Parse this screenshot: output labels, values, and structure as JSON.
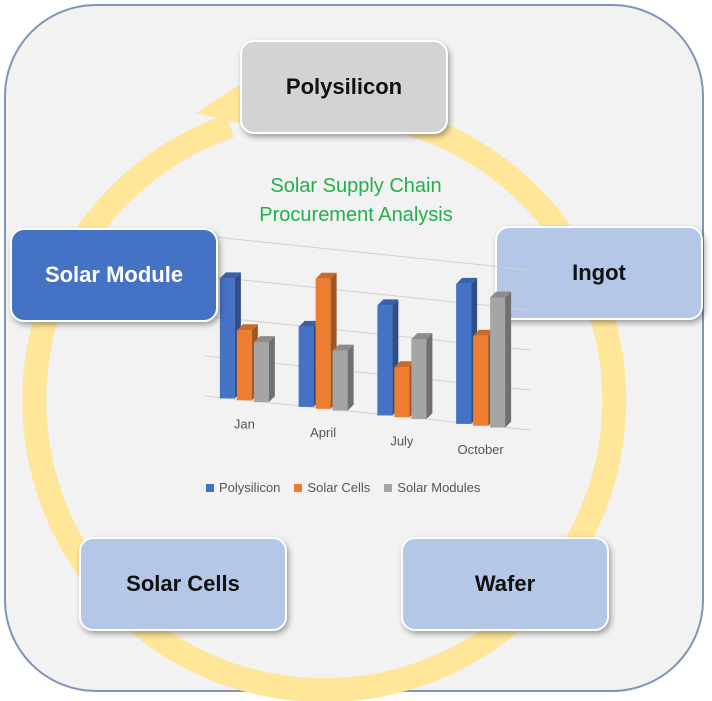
{
  "diagram": {
    "nodes": [
      {
        "id": "polysilicon",
        "label": "Polysilicon"
      },
      {
        "id": "ingot",
        "label": "Ingot"
      },
      {
        "id": "wafer",
        "label": "Wafer"
      },
      {
        "id": "solar-cells",
        "label": "Solar Cells"
      },
      {
        "id": "solar-module",
        "label": "Solar Module"
      }
    ],
    "cycle_color": "#ffe699",
    "node_colors": {
      "gray": "#d3d3d3",
      "light": "#b4c7e7",
      "dark": "#4472c4"
    }
  },
  "chart_data": {
    "type": "bar",
    "title_line1": "Solar Supply Chain",
    "title_line2": "Procurement Analysis",
    "categories": [
      "Jan",
      "April",
      "July",
      "October"
    ],
    "series": [
      {
        "name": "Polysilicon",
        "color": "#4472c4",
        "values": [
          6.0,
          4.0,
          5.5,
          7.0
        ]
      },
      {
        "name": "Solar Cells",
        "color": "#ed7d31",
        "values": [
          3.5,
          6.5,
          2.5,
          4.5
        ]
      },
      {
        "name": "Solar Modules",
        "color": "#a5a5a5",
        "values": [
          3.0,
          3.0,
          4.0,
          6.5
        ]
      }
    ],
    "ylim": [
      0,
      8
    ],
    "grid": true,
    "legend": "bottom"
  }
}
